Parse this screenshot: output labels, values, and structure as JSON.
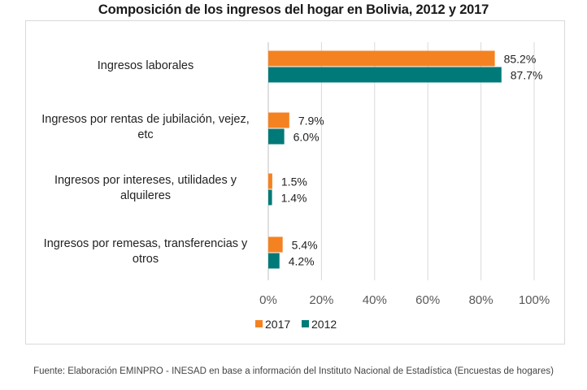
{
  "chart_data": {
    "type": "bar",
    "orientation": "horizontal",
    "title": "Composición de los ingresos del hogar en Bolivia, 2012 y 2017",
    "categories": [
      "Ingresos laborales",
      "Ingresos por rentas de jubilación, vejez, etc",
      "Ingresos por intereses, utilidades y alquileres",
      "Ingresos por remesas, transferencias y otros"
    ],
    "series": [
      {
        "name": "2017",
        "color": "#f58220",
        "values": [
          85.2,
          7.9,
          1.5,
          5.4
        ],
        "labels": [
          "85.2%",
          "7.9%",
          "1.5%",
          "5.4%"
        ]
      },
      {
        "name": "2012",
        "color": "#007a78",
        "values": [
          87.7,
          6.0,
          1.4,
          4.2
        ],
        "labels": [
          "87.7%",
          "6.0%",
          "1.4%",
          "4.2%"
        ]
      }
    ],
    "xlim": [
      0,
      100
    ],
    "xticks": [
      0,
      20,
      40,
      60,
      80,
      100
    ],
    "xtick_labels": [
      "0%",
      "20%",
      "40%",
      "60%",
      "80%",
      "100%"
    ],
    "grid": true,
    "legend_position": "bottom-center",
    "xlabel": "",
    "ylabel": ""
  },
  "category_lines": [
    [
      "Ingresos laborales"
    ],
    [
      "Ingresos por rentas de jubilación, vejez,",
      "etc"
    ],
    [
      "Ingresos por intereses, utilidades y",
      "alquileres"
    ],
    [
      "Ingresos por remesas, transferencias y",
      "otros"
    ]
  ],
  "source": "Fuente: Elaboración EMINPRO - INESAD en base a información del Instituto Nacional de Estadística (Encuestas de hogares)"
}
